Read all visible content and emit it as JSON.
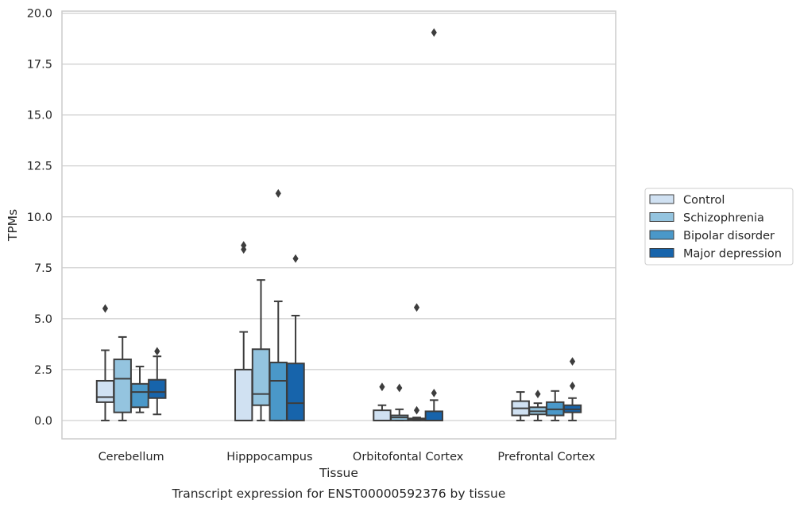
{
  "chart_data": {
    "type": "box",
    "title": "",
    "caption": "Transcript expression for ENST00000592376 by tissue",
    "xlabel": "Tissue",
    "ylabel": "TPMs",
    "ylim": [
      -0.9,
      20.1
    ],
    "yticks": [
      "0.0",
      "2.5",
      "5.0",
      "7.5",
      "10.0",
      "12.5",
      "15.0",
      "17.5",
      "20.0"
    ],
    "ytick_values": [
      0,
      2.5,
      5,
      7.5,
      10,
      12.5,
      15,
      17.5,
      20
    ],
    "grid": "horizontal",
    "legend_position": "right",
    "categories": [
      "Cerebellum",
      "Hipppocampus",
      "Orbitofontal Cortex",
      "Prefrontal Cortex"
    ],
    "series": [
      {
        "name": "Control",
        "color": "#d0e1f2",
        "boxes": [
          {
            "whisker_low": 0.0,
            "q1": 0.9,
            "median": 1.15,
            "q3": 1.95,
            "whisker_high": 3.45,
            "outliers": [
              5.5
            ]
          },
          {
            "whisker_low": 0.0,
            "q1": 0.0,
            "median": 0.0,
            "q3": 2.5,
            "whisker_high": 4.35,
            "outliers": [
              8.4,
              8.6
            ]
          },
          {
            "whisker_low": 0.0,
            "q1": 0.0,
            "median": 0.0,
            "q3": 0.5,
            "whisker_high": 0.75,
            "outliers": [
              1.65
            ]
          },
          {
            "whisker_low": 0.0,
            "q1": 0.25,
            "median": 0.6,
            "q3": 0.95,
            "whisker_high": 1.4,
            "outliers": []
          }
        ]
      },
      {
        "name": "Schizophrenia",
        "color": "#94c4df",
        "boxes": [
          {
            "whisker_low": 0.0,
            "q1": 0.4,
            "median": 2.05,
            "q3": 3.0,
            "whisker_high": 4.1,
            "outliers": []
          },
          {
            "whisker_low": 0.0,
            "q1": 0.75,
            "median": 1.3,
            "q3": 3.5,
            "whisker_high": 6.9,
            "outliers": []
          },
          {
            "whisker_low": 0.0,
            "q1": 0.0,
            "median": 0.15,
            "q3": 0.25,
            "whisker_high": 0.55,
            "outliers": [
              1.6
            ]
          },
          {
            "whisker_low": 0.0,
            "q1": 0.3,
            "median": 0.45,
            "q3": 0.65,
            "whisker_high": 0.85,
            "outliers": [
              1.3
            ]
          }
        ]
      },
      {
        "name": "Bipolar disorder",
        "color": "#4a98c9",
        "boxes": [
          {
            "whisker_low": 0.4,
            "q1": 0.65,
            "median": 1.4,
            "q3": 1.8,
            "whisker_high": 2.65,
            "outliers": []
          },
          {
            "whisker_low": 0.0,
            "q1": 0.0,
            "median": 1.95,
            "q3": 2.85,
            "whisker_high": 5.85,
            "outliers": [
              11.15
            ]
          },
          {
            "whisker_low": 0.0,
            "q1": 0.0,
            "median": 0.05,
            "q3": 0.1,
            "whisker_high": 0.15,
            "outliers": [
              0.5,
              5.55
            ]
          },
          {
            "whisker_low": 0.0,
            "q1": 0.25,
            "median": 0.55,
            "q3": 0.9,
            "whisker_high": 1.45,
            "outliers": []
          }
        ]
      },
      {
        "name": "Major depression",
        "color": "#1764ab",
        "boxes": [
          {
            "whisker_low": 0.3,
            "q1": 1.1,
            "median": 1.4,
            "q3": 2.0,
            "whisker_high": 3.15,
            "outliers": [
              3.4
            ]
          },
          {
            "whisker_low": 0.0,
            "q1": 0.0,
            "median": 0.85,
            "q3": 2.8,
            "whisker_high": 5.15,
            "outliers": [
              7.95
            ]
          },
          {
            "whisker_low": 0.0,
            "q1": 0.0,
            "median": 0.0,
            "q3": 0.45,
            "whisker_high": 1.0,
            "outliers": [
              1.35,
              19.05
            ]
          },
          {
            "whisker_low": 0.0,
            "q1": 0.4,
            "median": 0.55,
            "q3": 0.75,
            "whisker_high": 1.1,
            "outliers": [
              1.7,
              2.9
            ]
          }
        ]
      }
    ]
  }
}
